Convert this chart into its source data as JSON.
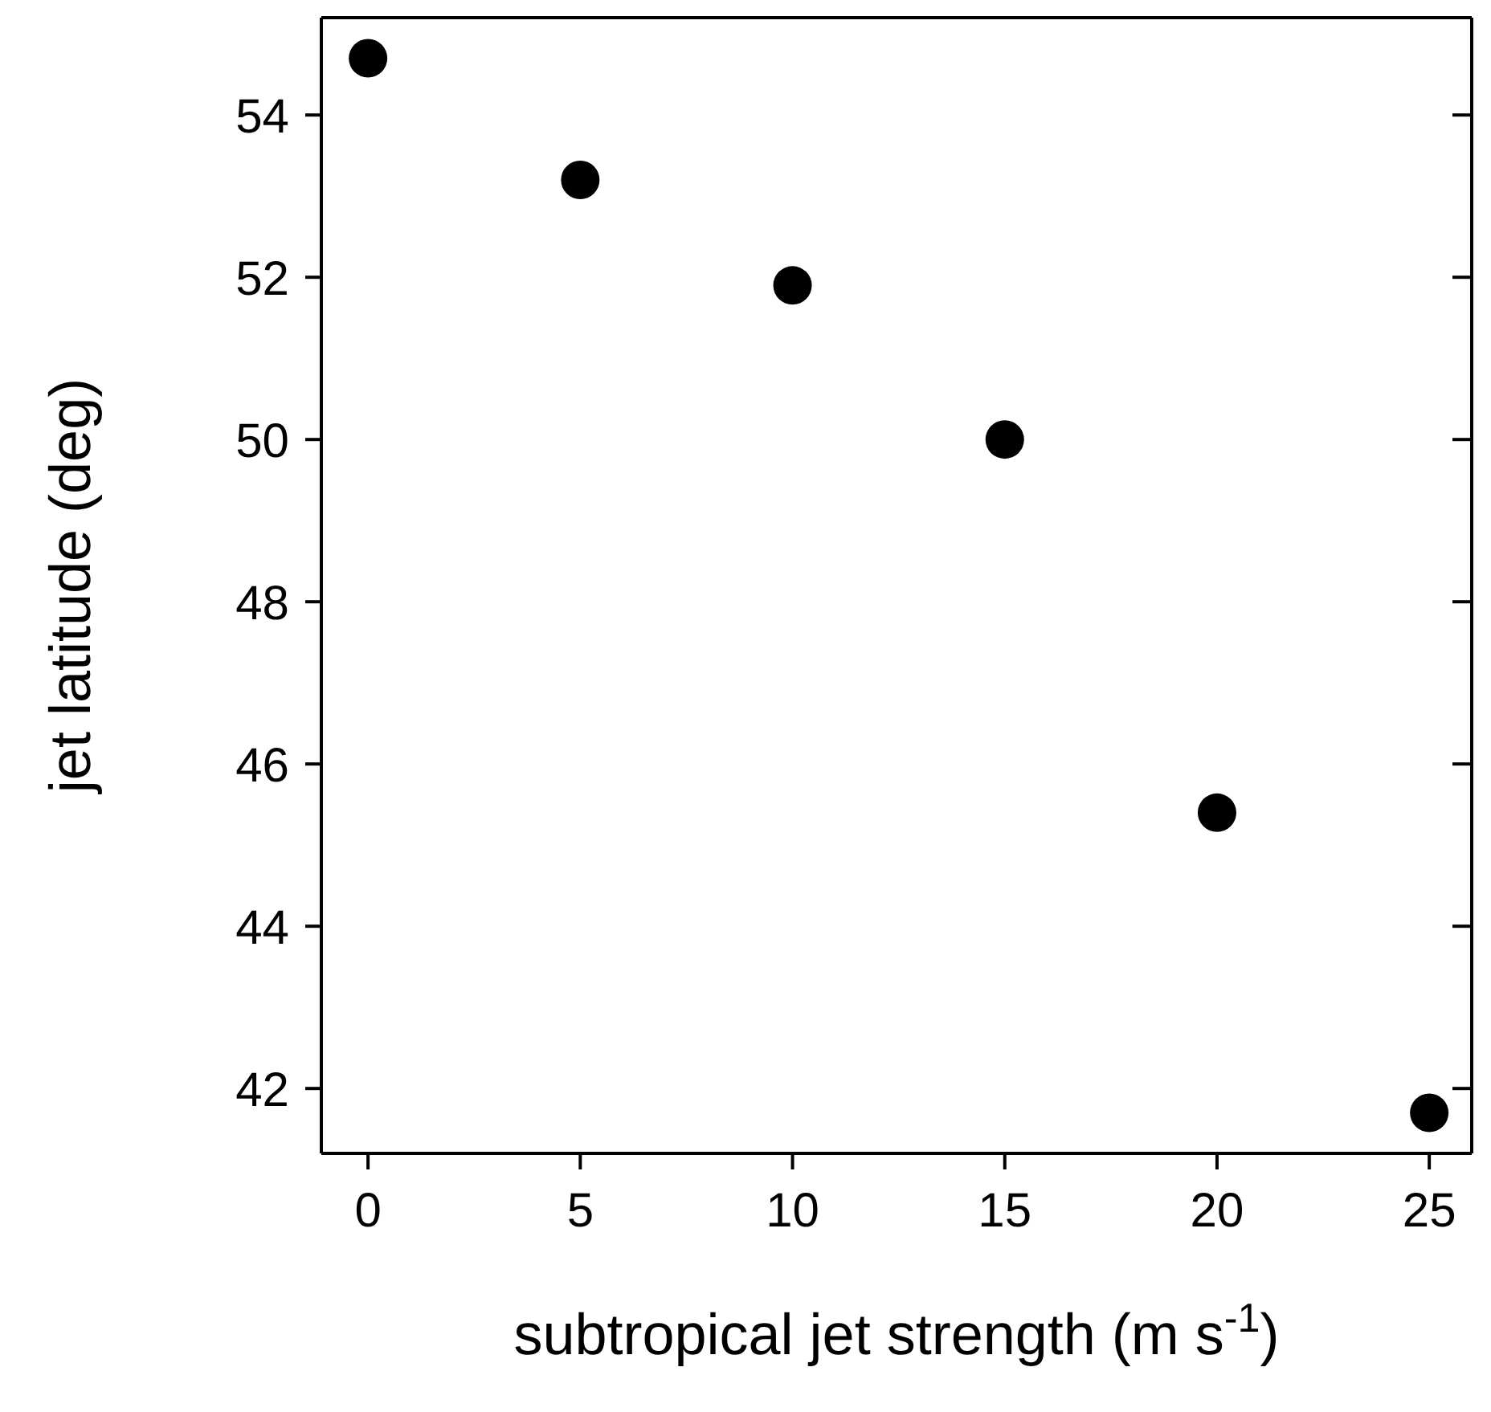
{
  "chart_data": {
    "type": "scatter",
    "xlabel": "subtropical jet strength (m s$^{-1}$)",
    "ylabel": "jet latitude (deg)",
    "x": [
      0,
      5,
      10,
      15,
      20,
      25
    ],
    "series": [
      {
        "color": "#000000",
        "values": [
          54.7,
          53.2,
          51.9,
          50.0,
          45.4,
          41.7
        ]
      }
    ],
    "xlim": [
      -1.1,
      26
    ],
    "xticks": [
      0,
      5,
      10,
      15,
      20,
      25
    ],
    "ylim": [
      41.2,
      55.2
    ],
    "yticks": [
      42,
      44,
      46,
      48,
      50,
      52,
      54
    ],
    "marker": "circle",
    "grid": false,
    "legend": false
  }
}
